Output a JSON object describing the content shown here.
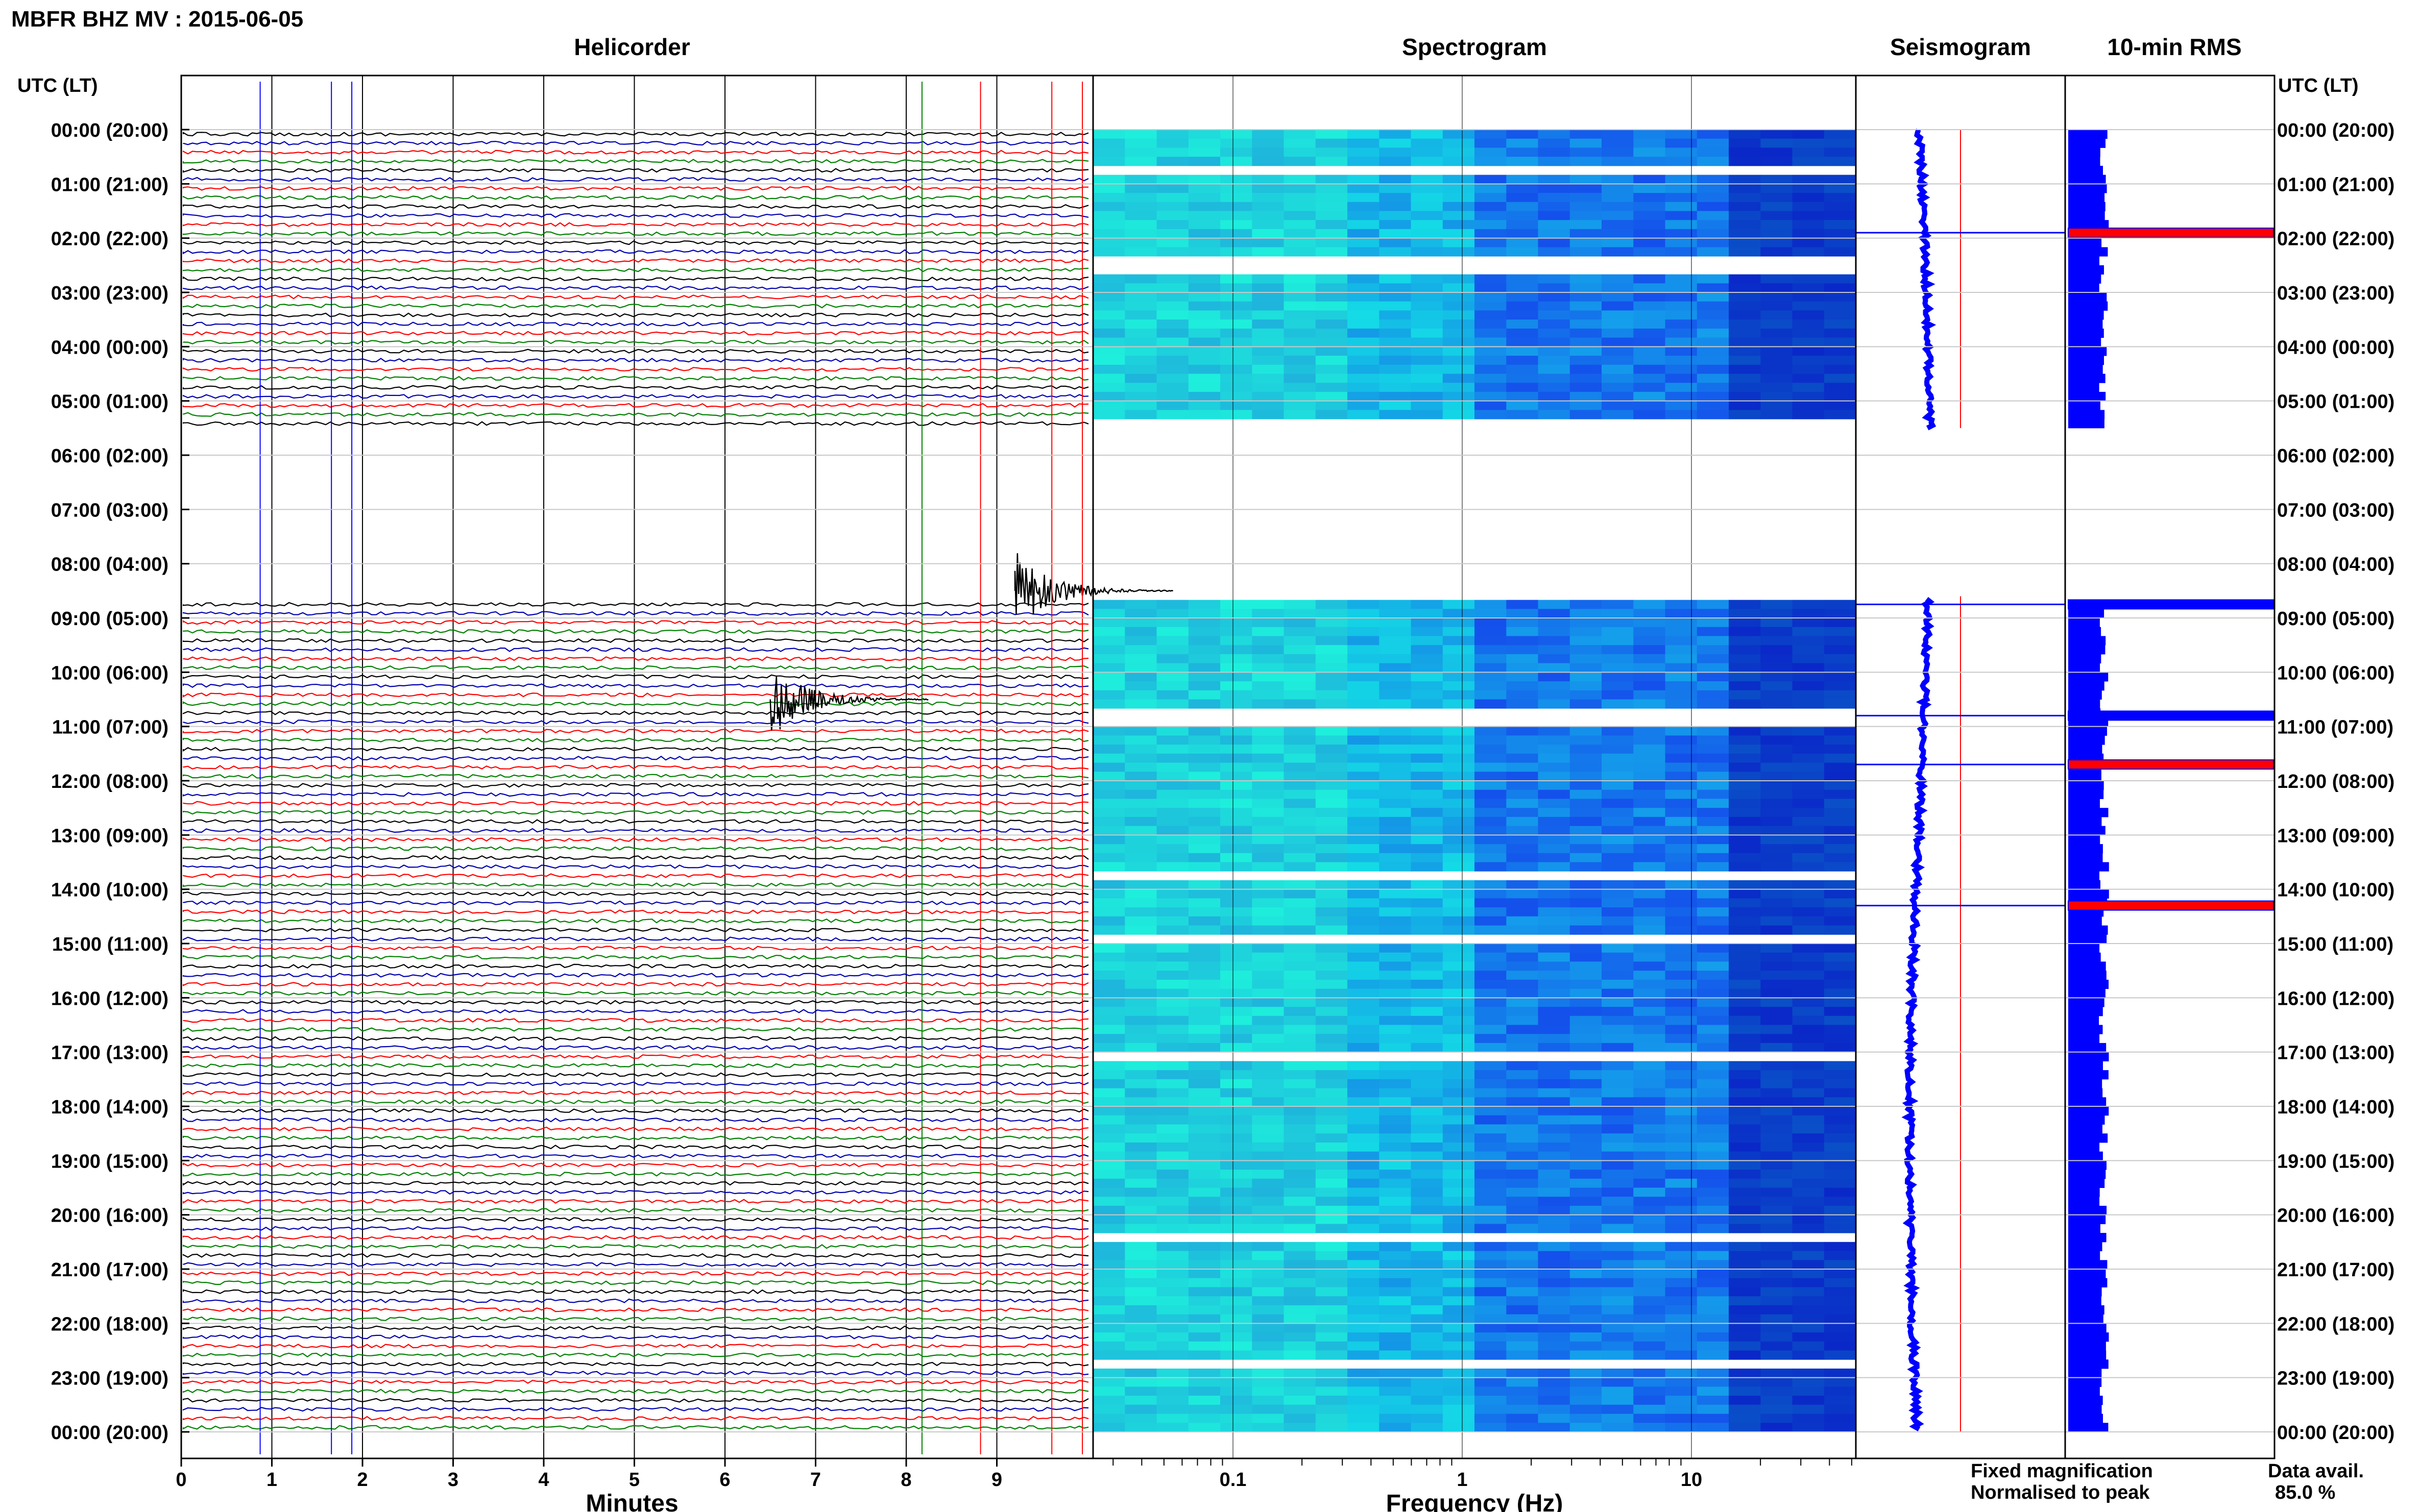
{
  "header": {
    "title": "MBFR BHZ MV : 2015-06-05"
  },
  "panels": {
    "helicorder": "Helicorder",
    "spectrogram": "Spectrogram",
    "seismogram": "Seismogram",
    "rms": "10-min RMS"
  },
  "axis": {
    "time_label": "UTC (LT)",
    "minutes_label": "Minutes",
    "frequency_label": "Frequency (Hz)"
  },
  "legend": {
    "fixed": "Fixed magnification",
    "normalised": "Normalised to peak",
    "fixed_color": "#0000ff",
    "normalised_color": "#ff0000"
  },
  "availability": {
    "label": "Data avail.",
    "value": "85.0 %"
  },
  "colors": {
    "trace_cycle": [
      "#000000",
      "#0000b0",
      "#ff0000",
      "#008000"
    ]
  },
  "chart_data": {
    "type": "helicorder",
    "time_ticks": [
      "00:00 (20:00)",
      "01:00 (21:00)",
      "02:00 (22:00)",
      "03:00 (23:00)",
      "04:00 (00:00)",
      "05:00 (01:00)",
      "06:00 (02:00)",
      "07:00 (03:00)",
      "08:00 (04:00)",
      "09:00 (05:00)",
      "10:00 (06:00)",
      "11:00 (07:00)",
      "12:00 (08:00)",
      "13:00 (09:00)",
      "14:00 (10:00)",
      "15:00 (11:00)",
      "16:00 (12:00)",
      "17:00 (13:00)",
      "18:00 (14:00)",
      "19:00 (15:00)",
      "20:00 (16:00)",
      "21:00 (17:00)",
      "22:00 (18:00)",
      "23:00 (19:00)",
      "00:00 (20:00)"
    ],
    "minute_ticks": [
      "0",
      "1",
      "2",
      "3",
      "4",
      "5",
      "6",
      "7",
      "8",
      "9"
    ],
    "frequency_ticks": [
      "0.1",
      "1",
      "10"
    ],
    "gap_hours": [
      5.5,
      8.6
    ],
    "events": [
      {
        "hour": 10.5,
        "minute": 6.5
      },
      {
        "hour": 8.5,
        "minute": 9.2
      }
    ],
    "rms_spikes_hours": [
      1.9,
      8.75,
      10.8,
      11.7,
      14.3
    ],
    "rms_red_spikes_hours": [
      1.9,
      11.7,
      14.3
    ]
  }
}
